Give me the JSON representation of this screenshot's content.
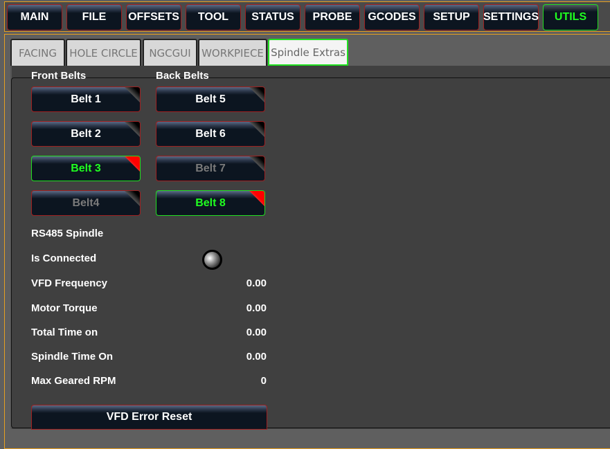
{
  "nav": [
    "MAIN",
    "FILE",
    "OFFSETS",
    "TOOL",
    "STATUS",
    "PROBE",
    "GCODES",
    "SETUP",
    "SETTINGS",
    "UTILS"
  ],
  "nav_active": "UTILS",
  "tabs": [
    "FACING",
    "HOLE CIRCLE",
    "NGCGUI",
    "WORKPIECE",
    "Spindle Extras"
  ],
  "tab_active": "Spindle Extras",
  "front_belts": {
    "title": "Front Belts",
    "items": [
      {
        "label": "Belt 1",
        "state": "off"
      },
      {
        "label": "Belt 2",
        "state": "off"
      },
      {
        "label": "Belt 3",
        "state": "on"
      },
      {
        "label": "Belt4",
        "state": "disabled"
      }
    ]
  },
  "back_belts": {
    "title": "Back Belts",
    "items": [
      {
        "label": "Belt 5",
        "state": "off"
      },
      {
        "label": "Belt 6",
        "state": "off"
      },
      {
        "label": "Belt 7",
        "state": "disabled"
      },
      {
        "label": "Belt 8",
        "state": "on"
      }
    ]
  },
  "spindle": {
    "title": "RS485 Spindle",
    "connected_label": "Is Connected",
    "connected": false,
    "rows": [
      {
        "label": "VFD Frequency",
        "value": "0.00"
      },
      {
        "label": "Motor Torque",
        "value": "0.00"
      },
      {
        "label": "Total Time on",
        "value": "0.00"
      },
      {
        "label": "Spindle Time On",
        "value": "0.00"
      },
      {
        "label": "Max Geared RPM",
        "value": "0"
      }
    ],
    "reset_label": "VFD Error Reset"
  },
  "colors": {
    "accent_active": "#20ff20",
    "frame": "#e8a020",
    "button_border": "#a02020"
  }
}
